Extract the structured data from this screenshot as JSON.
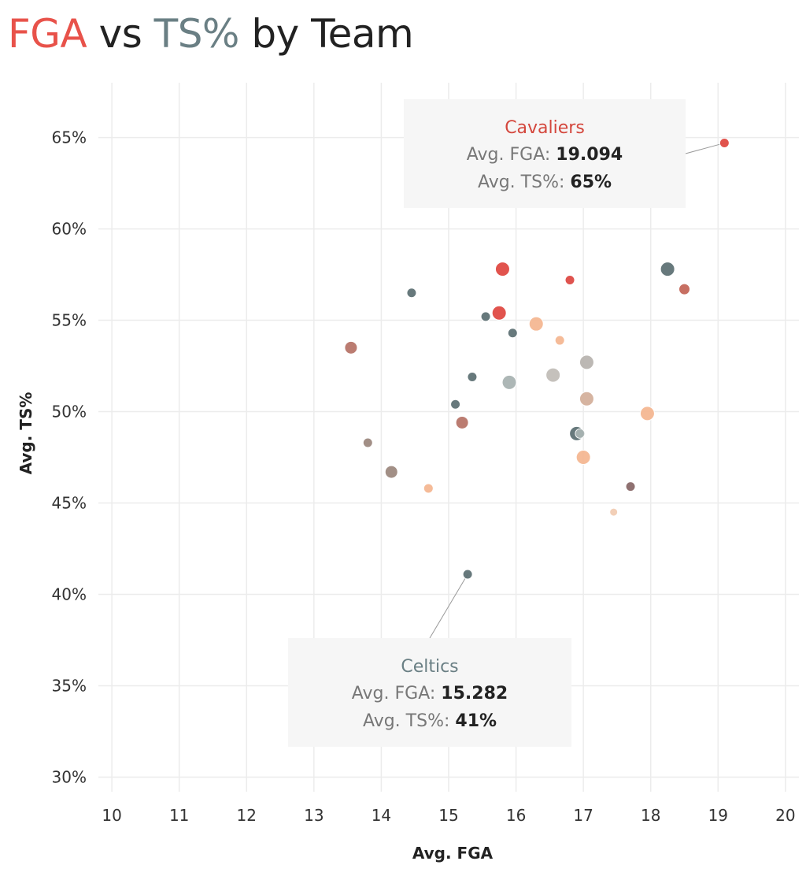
{
  "title": {
    "part1": "FGA",
    "part2": " vs ",
    "part3": "TS%",
    "part4": " by Team"
  },
  "colors": {
    "fga": "#e8524a",
    "ts": "#6a7f84",
    "grid": "#ececec",
    "tooltip_bg": "#f6f6f6"
  },
  "chart_data": {
    "type": "scatter",
    "title": "FGA vs TS% by Team",
    "xlabel": "Avg. FGA",
    "ylabel": "Avg. TS%",
    "xlim": [
      9.8,
      20.2
    ],
    "ylim": [
      29.2,
      68
    ],
    "x_ticks": [
      10,
      11,
      12,
      13,
      14,
      15,
      16,
      17,
      18,
      19,
      20
    ],
    "x_tick_labels": [
      "10",
      "11",
      "12",
      "13",
      "14",
      "15",
      "16",
      "17",
      "18",
      "19",
      "20"
    ],
    "y_ticks": [
      30,
      35,
      40,
      45,
      50,
      55,
      60,
      65
    ],
    "y_tick_labels": [
      "30%",
      "35%",
      "40%",
      "45%",
      "50%",
      "55%",
      "60%",
      "65%"
    ],
    "grid": true,
    "points": [
      {
        "x": 19.094,
        "y": 64.7,
        "size": 6,
        "color": "#e04a44"
      },
      {
        "x": 15.282,
        "y": 41.1,
        "size": 6,
        "color": "#5f7276"
      },
      {
        "x": 15.8,
        "y": 57.8,
        "size": 9,
        "color": "#e04a44"
      },
      {
        "x": 16.8,
        "y": 57.2,
        "size": 6,
        "color": "#de4a45"
      },
      {
        "x": 18.25,
        "y": 57.8,
        "size": 9,
        "color": "#5f7276"
      },
      {
        "x": 18.5,
        "y": 56.7,
        "size": 7,
        "color": "#c5685a"
      },
      {
        "x": 14.45,
        "y": 56.5,
        "size": 6,
        "color": "#5f7276"
      },
      {
        "x": 15.55,
        "y": 55.2,
        "size": 6,
        "color": "#5f7276"
      },
      {
        "x": 15.75,
        "y": 55.4,
        "size": 9,
        "color": "#e04a44"
      },
      {
        "x": 16.3,
        "y": 54.8,
        "size": 9,
        "color": "#f5b893"
      },
      {
        "x": 15.95,
        "y": 54.3,
        "size": 6,
        "color": "#5f7276"
      },
      {
        "x": 16.65,
        "y": 53.9,
        "size": 6,
        "color": "#f5b893"
      },
      {
        "x": 13.55,
        "y": 53.5,
        "size": 8,
        "color": "#b8756a"
      },
      {
        "x": 17.05,
        "y": 52.7,
        "size": 9,
        "color": "#b9b5b0"
      },
      {
        "x": 16.55,
        "y": 52.0,
        "size": 9,
        "color": "#c2beb9"
      },
      {
        "x": 15.35,
        "y": 51.9,
        "size": 6,
        "color": "#5f7276"
      },
      {
        "x": 15.9,
        "y": 51.6,
        "size": 9,
        "color": "#a9b4b3"
      },
      {
        "x": 17.05,
        "y": 50.7,
        "size": 9,
        "color": "#d4b19c"
      },
      {
        "x": 15.1,
        "y": 50.4,
        "size": 6,
        "color": "#5f7276"
      },
      {
        "x": 17.95,
        "y": 49.9,
        "size": 9,
        "color": "#f5b893"
      },
      {
        "x": 15.2,
        "y": 49.4,
        "size": 8,
        "color": "#b8756a"
      },
      {
        "x": 16.9,
        "y": 48.8,
        "size": 9,
        "color": "#5f7276"
      },
      {
        "x": 16.95,
        "y": 48.8,
        "size": 6,
        "color": "#a9b4b3"
      },
      {
        "x": 13.8,
        "y": 48.3,
        "size": 6,
        "color": "#9e8a80"
      },
      {
        "x": 17.0,
        "y": 47.5,
        "size": 9,
        "color": "#f5b893"
      },
      {
        "x": 14.15,
        "y": 46.7,
        "size": 8,
        "color": "#9e8a80"
      },
      {
        "x": 17.7,
        "y": 45.9,
        "size": 6,
        "color": "#8a6a6a"
      },
      {
        "x": 14.7,
        "y": 45.8,
        "size": 6,
        "color": "#f5b893"
      },
      {
        "x": 17.45,
        "y": 44.5,
        "size": 5,
        "color": "#f2cdb4"
      }
    ],
    "annotations": [
      {
        "team": "Cavaliers",
        "fga_label": "Avg. FGA: ",
        "fga_value": "19.094",
        "ts_label": "Avg. TS%: ",
        "ts_value": "65%",
        "x": 19.094,
        "y": 64.7,
        "color": "#d4473d"
      },
      {
        "team": "Celtics",
        "fga_label": "Avg. FGA: ",
        "fga_value": "15.282",
        "ts_label": "Avg. TS%: ",
        "ts_value": "41%",
        "x": 15.282,
        "y": 41.1,
        "color": "#6a7f84"
      }
    ]
  }
}
